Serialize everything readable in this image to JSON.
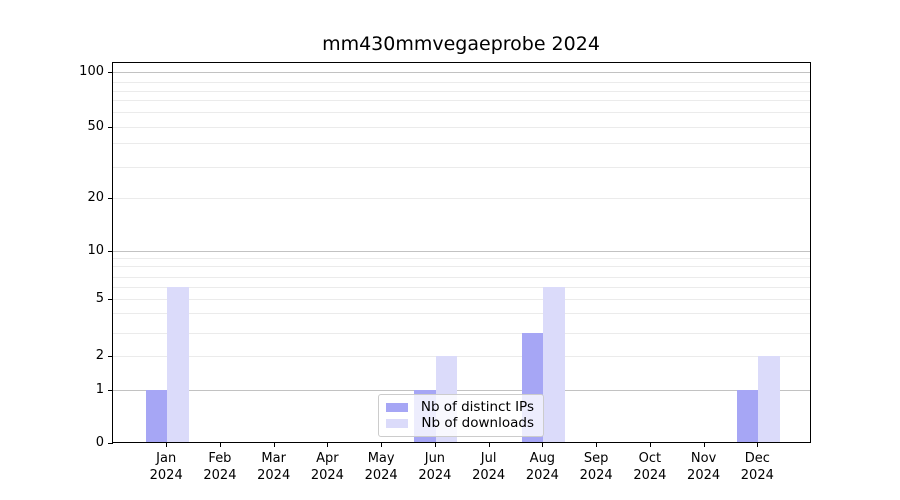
{
  "title": "mm430mmvegaeprobe 2024",
  "legend": {
    "items": [
      {
        "label": "Nb of distinct IPs",
        "color": "#a6a6f5"
      },
      {
        "label": "Nb of downloads",
        "color": "#dbdbfa"
      }
    ]
  },
  "chart_data": {
    "type": "bar",
    "title": "mm430mmvegaeprobe 2024",
    "categories": [
      {
        "month": "Jan",
        "year": "2024"
      },
      {
        "month": "Feb",
        "year": "2024"
      },
      {
        "month": "Mar",
        "year": "2024"
      },
      {
        "month": "Apr",
        "year": "2024"
      },
      {
        "month": "May",
        "year": "2024"
      },
      {
        "month": "Jun",
        "year": "2024"
      },
      {
        "month": "Jul",
        "year": "2024"
      },
      {
        "month": "Aug",
        "year": "2024"
      },
      {
        "month": "Sep",
        "year": "2024"
      },
      {
        "month": "Oct",
        "year": "2024"
      },
      {
        "month": "Nov",
        "year": "2024"
      },
      {
        "month": "Dec",
        "year": "2024"
      }
    ],
    "series": [
      {
        "name": "Nb of distinct IPs",
        "color": "#a6a6f5",
        "values": [
          1,
          0,
          0,
          0,
          0,
          1,
          0,
          3,
          0,
          0,
          0,
          1
        ]
      },
      {
        "name": "Nb of downloads",
        "color": "#dbdbfa",
        "values": [
          6,
          0,
          0,
          0,
          0,
          2,
          0,
          6,
          0,
          0,
          0,
          2
        ]
      }
    ],
    "xlabel": "",
    "ylabel": "",
    "yscale": "symlog",
    "y_ticks": [
      0,
      1,
      2,
      5,
      10,
      20,
      50,
      100
    ],
    "y_minor_gridlines": [
      2,
      3,
      4,
      5,
      6,
      7,
      8,
      9,
      20,
      30,
      40,
      50,
      60,
      70,
      80,
      90
    ],
    "y_major_gridlines": [
      1,
      10,
      100
    ],
    "ylim": [
      0,
      130
    ],
    "grid": "horizontal",
    "legend_position": "lower center"
  }
}
